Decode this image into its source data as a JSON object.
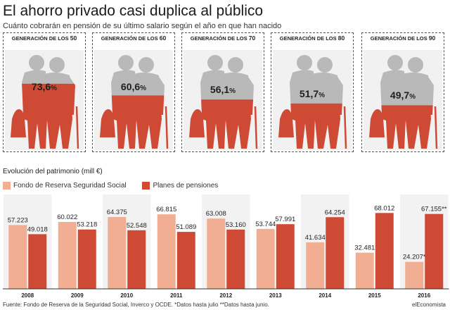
{
  "header": {
    "title": "El ahorro privado casi duplica al público",
    "subtitle": "Cuánto cobrarán en pensión de su último salario según el año en que han nacido"
  },
  "generations": [
    {
      "label_prefix": "GENERACIÓN DE LOS ",
      "label_num": "50",
      "value_text": "73,6",
      "value": 73.6
    },
    {
      "label_prefix": "GENERACIÓN DE LOS ",
      "label_num": "60",
      "value_text": "60,6",
      "value": 60.6
    },
    {
      "label_prefix": "GENERACIÓN DE LOS ",
      "label_num": "70",
      "value_text": "56,1",
      "value": 56.1
    },
    {
      "label_prefix": "GENERACIÓN DE LOS ",
      "label_num": "80",
      "value_text": "51,7",
      "value": 51.7
    },
    {
      "label_prefix": "GENERACIÓN DE LOS ",
      "label_num": "90",
      "value_text": "49,7",
      "value": 49.7
    }
  ],
  "percent_sign": "%",
  "colors": {
    "red": "#cf4a35",
    "grey": "#b9b9b9",
    "light_salmon": "#f2ae92",
    "panel_bg": "#f1f1f1"
  },
  "chart_data": {
    "type": "bar",
    "title": "Evolución del patrimonio (mill €)",
    "categories": [
      "2008",
      "2009",
      "2010",
      "2011",
      "2012",
      "2013",
      "2014",
      "2015",
      "2016"
    ],
    "series": [
      {
        "name": "Fondo de Reserva Seguridad Social",
        "color": "#f2ae92",
        "values": [
          57223,
          60022,
          64375,
          66815,
          63008,
          53744,
          41634,
          32481,
          24207
        ],
        "labels": [
          "57.223",
          "60.022",
          "64.375",
          "66.815",
          "63.008",
          "53.744",
          "41.634",
          "32.481",
          "24.207*"
        ]
      },
      {
        "name": "Planes de pensiones",
        "color": "#cf4a35",
        "values": [
          49018,
          53218,
          52548,
          51089,
          53160,
          57991,
          64254,
          68012,
          67155
        ],
        "labels": [
          "49.018",
          "53.218",
          "52.548",
          "51.089",
          "53.160",
          "57.991",
          "64.254",
          "68.012",
          "67.155**"
        ]
      }
    ],
    "ylim": [
      0,
      72000
    ],
    "grid": false,
    "legend": "top-left"
  },
  "footer": {
    "source": "Fuente: Fondo de Reserva de la Seguridad Social, Inverco y OCDE. *Datos hasta julio **Datos hasta junio.",
    "brand": "elEconomista"
  }
}
